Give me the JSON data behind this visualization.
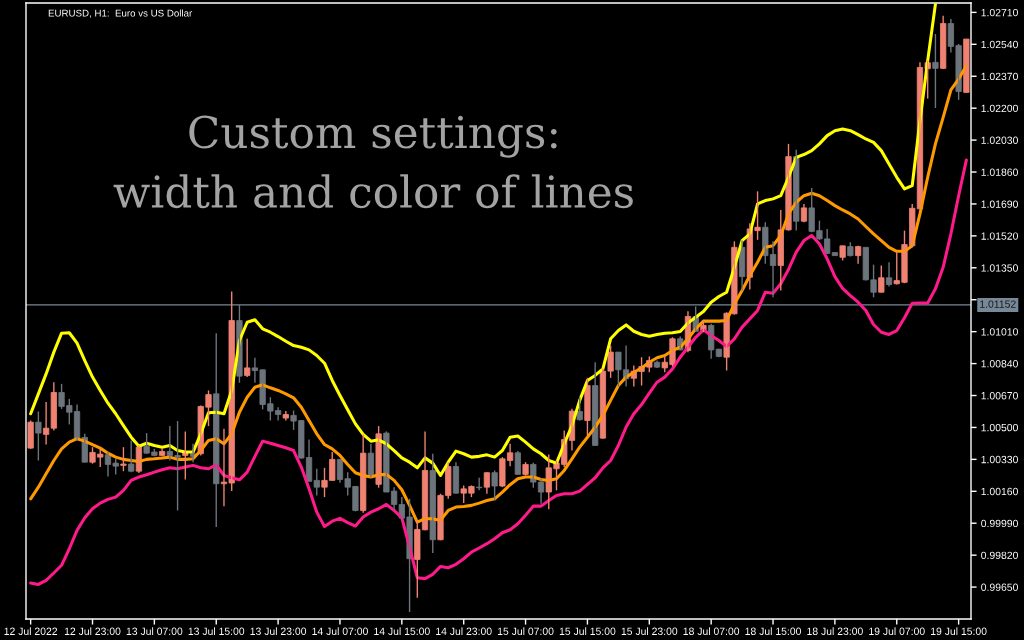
{
  "chart_data": {
    "type": "candlestick",
    "title": "EURUSD, H1:  Euro vs US Dollar",
    "annotations": [
      "Custom settings:\nwidth and color of lines"
    ],
    "categories": [
      "12 Jul 2022",
      null,
      null,
      null,
      null,
      null,
      null,
      null,
      "12 Jul 23:00",
      null,
      null,
      null,
      null,
      null,
      null,
      null,
      "13 Jul 07:00",
      null,
      null,
      null,
      null,
      null,
      null,
      null,
      "13 Jul 15:00",
      null,
      null,
      null,
      null,
      null,
      null,
      null,
      "13 Jul 23:00",
      null,
      null,
      null,
      null,
      null,
      null,
      null,
      "14 Jul 07:00",
      null,
      null,
      null,
      null,
      null,
      null,
      null,
      "14 Jul 15:00",
      null,
      null,
      null,
      null,
      null,
      null,
      null,
      "14 Jul 23:00",
      null,
      null,
      null,
      null,
      null,
      null,
      null,
      "15 Jul 07:00",
      null,
      null,
      null,
      null,
      null,
      null,
      null,
      "15 Jul 15:00",
      null,
      null,
      null,
      null,
      null,
      null,
      null,
      "15 Jul 23:00",
      null,
      null,
      null,
      null,
      null,
      null,
      null,
      "18 Jul 07:00",
      null,
      null,
      null,
      null,
      null,
      null,
      null,
      "18 Jul 15:00",
      null,
      null,
      null,
      null,
      null,
      null,
      null,
      "18 Jul 23:00",
      null,
      null,
      null,
      null,
      null,
      null,
      null,
      "19 Jul 07:00",
      null,
      null,
      null,
      null,
      null,
      null,
      null,
      "19 Jul 15:00",
      null
    ],
    "ohlc": [
      [
        1.0039,
        1.00537,
        1.00386,
        1.00528
      ],
      [
        1.00528,
        1.00585,
        1.00324,
        1.0047
      ],
      [
        1.00463,
        1.00635,
        1.00409,
        1.00496
      ],
      [
        1.00496,
        1.00741,
        1.00484,
        1.00686
      ],
      [
        1.00686,
        1.00732,
        1.00599,
        1.00612
      ],
      [
        1.00617,
        1.00652,
        1.00516,
        1.00581
      ],
      [
        1.00585,
        1.00622,
        1.00431,
        1.0044
      ],
      [
        1.00447,
        1.00466,
        1.00315,
        1.00315
      ],
      [
        1.00315,
        1.00395,
        1.00307,
        1.00367
      ],
      [
        1.00342,
        1.00386,
        1.00289,
        1.00358
      ],
      [
        1.00354,
        1.00369,
        1.00239,
        1.00303
      ],
      [
        1.0031,
        1.00333,
        1.0025,
        1.00294
      ],
      [
        1.00298,
        1.00395,
        1.00267,
        1.00305
      ],
      [
        1.00305,
        1.00431,
        1.00262,
        1.00267
      ],
      [
        1.00267,
        1.00404,
        1.00257,
        1.00395
      ],
      [
        1.004,
        1.0047,
        1.0036,
        1.00363
      ],
      [
        1.00369,
        1.00386,
        1.00346,
        1.00351
      ],
      [
        1.00351,
        1.00386,
        1.00346,
        1.00372
      ],
      [
        1.00372,
        1.00507,
        1.00324,
        1.00351
      ],
      [
        1.00351,
        1.00534,
        1.00058,
        1.00342
      ],
      [
        1.00351,
        1.00479,
        1.00223,
        1.00369
      ],
      [
        1.0036,
        1.00413,
        1.00315,
        1.00346
      ],
      [
        1.0036,
        1.00617,
        1.00351,
        1.00612
      ],
      [
        1.00608,
        1.00697,
        1.00507,
        1.00675
      ],
      [
        1.00679,
        1.01002,
        0.9997,
        1.002
      ],
      [
        1.002,
        1.00493,
        1.00081,
        1.00209
      ],
      [
        1.00204,
        1.01224,
        1.00161,
        1.01069
      ],
      [
        1.01069,
        1.01153,
        1.00738,
        1.00773
      ],
      [
        1.00777,
        1.00972,
        1.00768,
        1.00817
      ],
      [
        1.00817,
        1.00871,
        1.00738,
        1.00803
      ],
      [
        1.00807,
        1.00807,
        1.00596,
        1.00622
      ],
      [
        1.00626,
        1.00661,
        1.00537,
        1.00587
      ],
      [
        1.0059,
        1.00608,
        1.00537,
        1.00569
      ],
      [
        1.0055,
        1.00587,
        1.00537,
        1.00569
      ],
      [
        1.00564,
        1.0059,
        1.00487,
        1.00534
      ],
      [
        1.00537,
        1.00537,
        1.00333,
        1.00337
      ],
      [
        1.0034,
        1.00436,
        1.00213,
        1.00213
      ],
      [
        1.00218,
        1.0028,
        1.00138,
        1.00182
      ],
      [
        1.00182,
        1.00285,
        1.00129,
        1.00218
      ],
      [
        1.00218,
        1.00369,
        1.00218,
        1.0033
      ],
      [
        1.0033,
        1.0033,
        1.00205,
        1.00223
      ],
      [
        1.00227,
        1.00262,
        1.00138,
        1.00182
      ],
      [
        1.00186,
        1.00186,
        1.00053,
        1.00058
      ],
      [
        1.00058,
        1.00463,
        1.00046,
        1.00363
      ],
      [
        1.00363,
        1.00413,
        1.00232,
        1.00239
      ],
      [
        1.00197,
        1.00507,
        1.00179,
        1.00466
      ],
      [
        1.0047,
        1.00479,
        1.00156,
        1.00156
      ],
      [
        1.00161,
        1.00182,
        1.00058,
        1.0009
      ],
      [
        1.0009,
        1.00129,
        1.00005,
        1.00017
      ],
      [
        1.00023,
        1.0012,
        0.99517,
        0.99801
      ],
      [
        0.99797,
        1.00005,
        0.99593,
        0.99957
      ],
      [
        0.99955,
        1.00479,
        0.99952,
        1.00271
      ],
      [
        1.00271,
        1.0036,
        0.99831,
        0.99902
      ],
      [
        0.99902,
        1.00147,
        0.99899,
        1.00138
      ],
      [
        1.00138,
        1.00315,
        1.0012,
        1.00292
      ],
      [
        1.00292,
        1.00315,
        1.00147,
        1.0015
      ],
      [
        1.0015,
        1.00191,
        1.00097,
        1.00173
      ],
      [
        1.0015,
        1.00191,
        1.00129,
        1.00186
      ],
      [
        1.00182,
        1.00232,
        1.00165,
        1.00179
      ],
      [
        1.00182,
        1.00262,
        1.00147,
        1.00259
      ],
      [
        1.00259,
        1.00271,
        1.00111,
        1.00188
      ],
      [
        1.00188,
        1.00342,
        1.00182,
        1.00333
      ],
      [
        1.00324,
        1.00413,
        1.00294,
        1.00365
      ],
      [
        1.00365,
        1.00374,
        1.0025,
        1.0025
      ],
      [
        1.0025,
        1.00315,
        1.00244,
        1.00303
      ],
      [
        1.00303,
        1.00312,
        1.00179,
        1.00209
      ],
      [
        1.00209,
        1.00227,
        1.00094,
        1.00156
      ],
      [
        1.00156,
        1.00356,
        1.00064,
        1.00285
      ],
      [
        1.0028,
        1.00324,
        1.00165,
        1.0031
      ],
      [
        1.00303,
        1.00484,
        1.00289,
        1.00436
      ],
      [
        1.00431,
        1.00599,
        1.00377,
        1.00587
      ],
      [
        1.00585,
        1.00661,
        1.00537,
        1.00541
      ],
      [
        1.00537,
        1.00764,
        1.00457,
        1.00723
      ],
      [
        1.00723,
        1.00847,
        1.00404,
        1.00404
      ],
      [
        1.00443,
        1.00812,
        1.0044,
        1.008
      ],
      [
        1.008,
        1.00936,
        1.00764,
        1.00901
      ],
      [
        1.00901,
        1.00901,
        1.00718,
        1.00807
      ],
      [
        1.00807,
        1.00936,
        1.00718,
        1.00759
      ],
      [
        1.00762,
        1.0083,
        1.00718,
        1.008
      ],
      [
        1.00798,
        1.00874,
        1.00723,
        1.00824
      ],
      [
        1.00821,
        1.00878,
        1.00794,
        1.00856
      ],
      [
        1.00847,
        1.00856,
        1.00817,
        1.00821
      ],
      [
        1.00817,
        1.00878,
        1.00794,
        1.00847
      ],
      [
        1.00835,
        1.0098,
        1.00825,
        1.00972
      ],
      [
        1.00972,
        1.00984,
        1.0091,
        1.00913
      ],
      [
        1.0091,
        1.01119,
        1.00901,
        1.01091
      ],
      [
        1.01091,
        1.01144,
        1.01012,
        1.01012
      ],
      [
        1.01016,
        1.01073,
        1.01007,
        1.01043
      ],
      [
        1.01043,
        1.01052,
        1.00866,
        1.00913
      ],
      [
        1.00917,
        1.00917,
        1.00874,
        1.00878
      ],
      [
        1.00874,
        1.01113,
        1.00803,
        1.01108
      ],
      [
        1.01105,
        1.01491,
        1.01101,
        1.01459
      ],
      [
        1.01459,
        1.01495,
        1.01229,
        1.01303
      ],
      [
        1.013,
        1.01587,
        1.01234,
        1.01557
      ],
      [
        1.01548,
        1.01757,
        1.01499,
        1.01566
      ],
      [
        1.01566,
        1.01592,
        1.01371,
        1.01415
      ],
      [
        1.01421,
        1.01491,
        1.01193,
        1.01362
      ],
      [
        1.01362,
        1.01658,
        1.01229,
        1.01552
      ],
      [
        1.01552,
        1.0201,
        1.01548,
        1.01942
      ],
      [
        1.01942,
        1.01978,
        1.01548,
        1.01598
      ],
      [
        1.01598,
        1.0169,
        1.01592,
        1.01669
      ],
      [
        1.01669,
        1.01775,
        1.01539,
        1.01544
      ],
      [
        1.01548,
        1.01601,
        1.01499,
        1.01504
      ],
      [
        1.01504,
        1.01557,
        1.01424,
        1.01427
      ],
      [
        1.01431,
        1.01433,
        1.01415,
        1.01415
      ],
      [
        1.01406,
        1.01468,
        1.01389,
        1.01467
      ],
      [
        1.01463,
        1.01486,
        1.0141,
        1.01415
      ],
      [
        1.01415,
        1.01468,
        1.01371,
        1.01463
      ],
      [
        1.01459,
        1.01459,
        1.01282,
        1.01286
      ],
      [
        1.01286,
        1.01367,
        1.01193,
        1.0122
      ],
      [
        1.0122,
        1.01362,
        1.01218,
        1.01297
      ],
      [
        1.01297,
        1.0138,
        1.0125,
        1.01261
      ],
      [
        1.01265,
        1.01433,
        1.01261,
        1.01282
      ],
      [
        1.01273,
        1.01548,
        1.01268,
        1.01474
      ],
      [
        1.01468,
        1.0169,
        1.01459,
        1.01667
      ],
      [
        1.01664,
        1.02444,
        1.01664,
        1.02417
      ],
      [
        1.0241,
        1.02453,
        1.02251,
        1.02442
      ],
      [
        1.02444,
        1.02595,
        1.02201,
        1.02412
      ],
      [
        1.02412,
        1.02692,
        1.02409,
        1.02651
      ],
      [
        1.02651,
        1.02675,
        1.02497,
        1.02529
      ],
      [
        1.02533,
        1.02542,
        1.02244,
        1.02289
      ],
      [
        1.02284,
        1.02568,
        1.02284,
        1.02568
      ]
    ],
    "colors": [
      "#ef8272",
      "#6c747c",
      "#ef8272",
      "#ef8272",
      "#6c747c",
      "#6c747c",
      "#6c747c",
      "#6c747c",
      "#ef8272",
      "#ef8272",
      "#6c747c",
      "#6c747c",
      "#ef8272",
      "#6c747c",
      "#ef8272",
      "#6c747c",
      "#6c747c",
      "#ef8272",
      "#6c747c",
      "#6c747c",
      "#ef8272",
      "#6c747c",
      "#ef8272",
      "#ef8272",
      "#6c747c",
      "#ef8272",
      "#ef8272",
      "#6c747c",
      "#ef8272",
      "#6c747c",
      "#6c747c",
      "#6c747c",
      "#6c747c",
      "#ef8272",
      "#6c747c",
      "#6c747c",
      "#6c747c",
      "#6c747c",
      "#ef8272",
      "#ef8272",
      "#6c747c",
      "#6c747c",
      "#6c747c",
      "#ef8272",
      "#6c747c",
      "#ef8272",
      "#6c747c",
      "#6c747c",
      "#6c747c",
      "#6c747c",
      "#ef8272",
      "#ef8272",
      "#6c747c",
      "#ef8272",
      "#ef8272",
      "#6c747c",
      "#ef8272",
      "#ef8272",
      "#6c747c",
      "#ef8272",
      "#6c747c",
      "#ef8272",
      "#ef8272",
      "#6c747c",
      "#ef8272",
      "#6c747c",
      "#6c747c",
      "#ef8272",
      "#ef8272",
      "#ef8272",
      "#ef8272",
      "#6c747c",
      "#ef8272",
      "#6c747c",
      "#ef8272",
      "#ef8272",
      "#6c747c",
      "#6c747c",
      "#ef8272",
      "#ef8272",
      "#ef8272",
      "#6c747c",
      "#ef8272",
      "#ef8272",
      "#6c747c",
      "#ef8272",
      "#6c747c",
      "#ef8272",
      "#6c747c",
      "#6c747c",
      "#ef8272",
      "#ef8272",
      "#6c747c",
      "#ef8272",
      "#ef8272",
      "#6c747c",
      "#6c747c",
      "#ef8272",
      "#ef8272",
      "#6c747c",
      "#ef8272",
      "#6c747c",
      "#6c747c",
      "#6c747c",
      "#6c747c",
      "#ef8272",
      "#6c747c",
      "#ef8272",
      "#6c747c",
      "#6c747c",
      "#ef8272",
      "#6c747c",
      "#ef8272",
      "#ef8272",
      "#ef8272",
      "#ef8272",
      "#ef8272",
      "#6c747c",
      "#ef8272",
      "#6c747c",
      "#6c747c",
      "#ef8272"
    ],
    "series": [
      {
        "type": "line",
        "color": "#ffff00",
        "values": [
          1.00573,
          1.00679,
          1.00785,
          1.00901,
          1.01002,
          1.01004,
          1.00949,
          1.00856,
          1.00768,
          1.00697,
          1.00629,
          1.00573,
          1.0051,
          1.00448,
          1.004,
          1.00416,
          1.00404,
          1.00395,
          1.00404,
          1.00377,
          1.00369,
          1.00369,
          1.00466,
          1.00578,
          1.00581,
          1.00573,
          1.00697,
          1.00963,
          1.0106,
          1.01073,
          1.01025,
          1.01007,
          1.00984,
          1.00959,
          1.00936,
          1.00927,
          1.00913,
          1.00883,
          1.00842,
          1.0075,
          1.0067,
          1.00594,
          1.00519,
          1.00463,
          1.00427,
          1.00434,
          1.00413,
          1.00377,
          1.00338,
          1.00315,
          1.00285,
          1.00338,
          1.0031,
          1.00244,
          1.00315,
          1.00374,
          1.0036,
          1.00342,
          1.00346,
          1.00354,
          1.00342,
          1.00377,
          1.00448,
          1.00454,
          1.00422,
          1.00386,
          1.0036,
          1.00324,
          1.0031,
          1.00413,
          1.0051,
          1.00644,
          1.0075,
          1.00777,
          1.00812,
          1.00972,
          1.01016,
          1.01046,
          1.01012,
          1.00995,
          1.00986,
          1.00995,
          1.01002,
          1.01004,
          1.01011,
          1.01056,
          1.01087,
          1.01117,
          1.01167,
          1.01197,
          1.0122,
          1.01353,
          1.01495,
          1.01531,
          1.0169,
          1.01708,
          1.01717,
          1.01734,
          1.01832,
          1.01938,
          1.01953,
          1.01974,
          1.0201,
          1.02054,
          1.0208,
          1.02089,
          1.0208,
          1.02059,
          1.02036,
          1.02018,
          1.01974,
          1.01903,
          1.01832,
          1.0177,
          1.01788,
          1.02133,
          1.02453,
          1.02754,
          null,
          null,
          null,
          null
        ]
      },
      {
        "type": "line",
        "color": "#ff9900",
        "values": [
          1.0012,
          1.00182,
          1.00253,
          1.00324,
          1.00386,
          1.00422,
          1.0044,
          1.00427,
          1.00409,
          1.0039,
          1.00363,
          1.00342,
          1.0033,
          1.00324,
          1.00319,
          1.0033,
          1.00333,
          1.00337,
          1.00342,
          1.0033,
          1.0033,
          1.00333,
          1.00377,
          1.00431,
          1.0044,
          1.00413,
          1.00466,
          1.00581,
          1.00661,
          1.00714,
          1.00727,
          1.00711,
          1.00697,
          1.00679,
          1.00658,
          1.00608,
          1.00537,
          1.00466,
          1.00409,
          1.00386,
          1.00351,
          1.00303,
          1.00259,
          1.00244,
          1.00236,
          1.00248,
          1.0025,
          1.00218,
          1.00168,
          1.00085,
          0.99996,
          1.00014,
          1.00014,
          1.00005,
          1.00058,
          1.00076,
          1.00079,
          1.00085,
          1.00097,
          1.00111,
          1.0012,
          1.00156,
          1.00195,
          1.00227,
          1.00236,
          1.00236,
          1.00223,
          1.00218,
          1.00227,
          1.00271,
          1.00333,
          1.00395,
          1.00448,
          1.00502,
          1.00564,
          1.00644,
          1.00723,
          1.00768,
          1.00794,
          1.00817,
          1.00847,
          1.00871,
          1.00883,
          1.0091,
          1.00927,
          1.00972,
          1.01025,
          1.01066,
          1.01066,
          1.01066,
          1.01069,
          1.01158,
          1.01229,
          1.01309,
          1.0138,
          1.01459,
          1.01468,
          1.01522,
          1.01637,
          1.01699,
          1.01734,
          1.01747,
          1.01734,
          1.01708,
          1.01681,
          1.01658,
          1.01637,
          1.0161,
          1.0157,
          1.01531,
          1.01495,
          1.01459,
          1.01438,
          1.01438,
          1.01468,
          1.01637,
          1.01832,
          1.0201,
          1.02151,
          1.02297,
          1.02355,
          1.02426
        ]
      },
      {
        "type": "line",
        "color": "#ff1a8c",
        "values": [
          0.99672,
          0.99664,
          0.99686,
          0.99725,
          0.99766,
          0.99854,
          0.99952,
          1.00019,
          1.00067,
          1.00097,
          1.00117,
          1.00129,
          1.00165,
          1.00218,
          1.00236,
          1.00248,
          1.00262,
          1.00275,
          1.00285,
          1.0028,
          1.00289,
          1.00298,
          1.00285,
          1.0028,
          1.00301,
          1.00244,
          1.00232,
          1.00221,
          1.00262,
          1.00346,
          1.00427,
          1.00416,
          1.00404,
          1.00392,
          1.00377,
          1.00289,
          1.00173,
          1.00049,
          0.99973,
          1.00001,
          1.00016,
          0.99993,
          0.99975,
          1.00023,
          1.00049,
          1.00067,
          1.0009,
          1.00058,
          1.00019,
          0.99863,
          0.997,
          0.99695,
          0.99718,
          0.9976,
          0.99753,
          0.99771,
          0.99801,
          0.99836,
          0.99858,
          0.99881,
          0.99907,
          0.99939,
          0.99955,
          0.99987,
          1.00032,
          1.00081,
          1.00081,
          1.00111,
          1.00138,
          1.00147,
          1.00147,
          1.00161,
          1.00197,
          1.00232,
          1.00285,
          1.00324,
          1.00404,
          1.00502,
          1.00573,
          1.00622,
          1.00683,
          1.00741,
          1.00768,
          1.00812,
          1.00874,
          1.00927,
          1.0098,
          1.0102,
          1.0099,
          1.00963,
          1.00931,
          1.00972,
          1.01034,
          1.01078,
          1.01123,
          1.0122,
          1.01215,
          1.01265,
          1.01341,
          1.01433,
          1.01495,
          1.01522,
          1.01477,
          1.01398,
          1.01303,
          1.0124,
          1.01202,
          1.01167,
          1.01123,
          1.01048,
          1.01007,
          1.00995,
          1.01016,
          1.01084,
          1.01161,
          1.01163,
          1.01163,
          1.01238,
          1.01353,
          1.01531,
          1.01734,
          1.01924
        ]
      }
    ],
    "ylim": [
      0.9948,
      1.0276
    ],
    "yticks": [
      {
        "value": 1.0271,
        "label": "1.02710"
      },
      {
        "value": 1.0254,
        "label": "1.02540"
      },
      {
        "value": 1.0237,
        "label": "1.02370"
      },
      {
        "value": 1.022,
        "label": "1.02200"
      },
      {
        "value": 1.0203,
        "label": "1.02030"
      },
      {
        "value": 1.0186,
        "label": "1.01860"
      },
      {
        "value": 1.0169,
        "label": "1.01690"
      },
      {
        "value": 1.0152,
        "label": "1.01520"
      },
      {
        "value": 1.0135,
        "label": "1.01350"
      },
      {
        "value": 1.0118,
        "label": null
      },
      {
        "value": 1.0101,
        "label": "1.01010"
      },
      {
        "value": 1.0084,
        "label": "1.00840"
      },
      {
        "value": 1.0067,
        "label": "1.00670"
      },
      {
        "value": 1.005,
        "label": "1.00500"
      },
      {
        "value": 1.0033,
        "label": "1.00330"
      },
      {
        "value": 1.0016,
        "label": "1.00160"
      },
      {
        "value": 0.9999,
        "label": "0.99990"
      },
      {
        "value": 0.9982,
        "label": "0.99820"
      },
      {
        "value": 0.9965,
        "label": "0.99650"
      }
    ],
    "ref_lines": [
      {
        "axis": "y",
        "value": 1.01152,
        "label": "1.01152",
        "color": "#778899"
      }
    ]
  }
}
